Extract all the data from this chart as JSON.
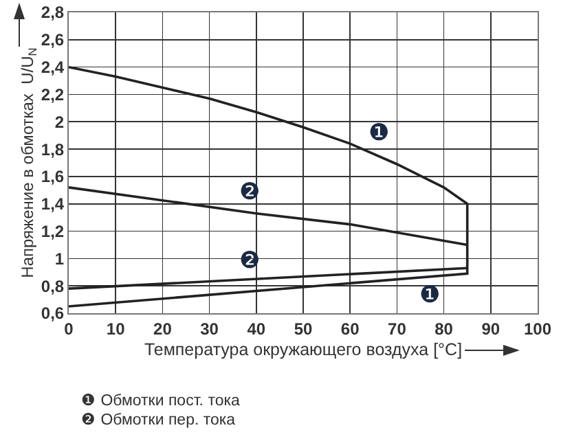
{
  "chart_data": {
    "type": "line",
    "xlabel": "Температура окружающего воздуха [°C]",
    "ylabel": "Напряжение в обмотках  U/U$_{N}$",
    "series": [
      {
        "color": "#222222",
        "x": [
          0,
          10,
          20,
          30,
          40,
          50,
          60,
          70,
          80,
          85,
          85,
          0
        ],
        "values": [
          2.4,
          2.33,
          2.25,
          2.17,
          2.07,
          1.96,
          1.84,
          1.69,
          1.52,
          1.4,
          0.89,
          0.65
        ]
      },
      {
        "color": "#222222",
        "x": [
          0,
          40,
          60,
          85
        ],
        "values": [
          1.52,
          1.33,
          1.25,
          1.1
        ]
      },
      {
        "color": "#222222",
        "x": [
          0,
          85
        ],
        "values": [
          0.78,
          0.93
        ]
      }
    ],
    "xlim": [
      0,
      100
    ],
    "xticks": [
      0,
      10,
      20,
      30,
      40,
      50,
      60,
      70,
      80,
      90,
      100
    ],
    "ylim": [
      0.6,
      2.8
    ],
    "yticks": [
      {
        "value": 0.6,
        "label": "0,6"
      },
      {
        "value": 0.8,
        "label": "0,8"
      },
      1,
      {
        "value": 1.2,
        "label": "1,2"
      },
      {
        "value": 1.4,
        "label": "1,4"
      },
      {
        "value": 1.6,
        "label": "1,6"
      },
      {
        "value": 1.8,
        "label": "1,8"
      },
      2,
      {
        "value": 2.2,
        "label": "2,2"
      },
      {
        "value": 2.4,
        "label": "2,4"
      },
      {
        "value": 2.6,
        "label": "2,6"
      },
      {
        "value": 2.8,
        "label": "2,8"
      }
    ],
    "grid": true,
    "marker": "none",
    "line_style": "solid",
    "annotations": [
      "❶",
      "❶",
      "❷",
      "❷",
      "❶ Обмотки пост. тока",
      "❷ Обмотки пер. тока"
    ]
  }
}
